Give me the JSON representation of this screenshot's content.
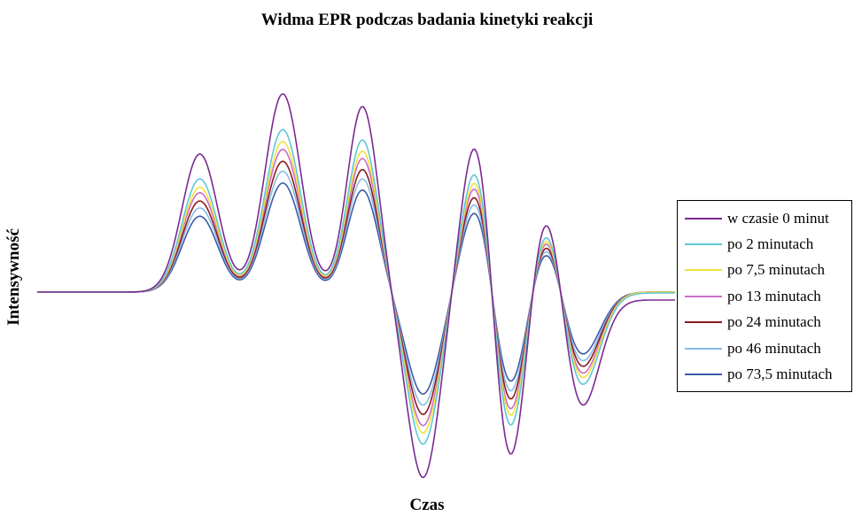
{
  "chart_data": {
    "type": "line",
    "title": "Widma EPR podczas badania kinetyki reakcji",
    "xlabel": "Czas",
    "ylabel": "Intensywność",
    "grid": false,
    "axes_visible": false,
    "legend_position": "right",
    "series": [
      {
        "name": "w czasie 0 minut",
        "color": "#7B2A91",
        "scale": 1.0,
        "tail": 0.045
      },
      {
        "name": "po 2 minutach",
        "color": "#5FC6D8",
        "scale": 0.82,
        "tail": 0.005
      },
      {
        "name": "po 7,5 minutach",
        "color": "#F2E23A",
        "scale": 0.76,
        "tail": 0.0
      },
      {
        "name": "po 13 minutach",
        "color": "#CE6CC8",
        "scale": 0.72,
        "tail": 0.0
      },
      {
        "name": "po 24 minutach",
        "color": "#8B1C1C",
        "scale": 0.66,
        "tail": 0.0
      },
      {
        "name": "po 46 minutach",
        "color": "#86BCEA",
        "scale": 0.61,
        "tail": 0.0
      },
      {
        "name": "po 73,5 minutach",
        "color": "#3B5BA8",
        "scale": 0.55,
        "tail": 0.0
      }
    ],
    "peaks": [
      {
        "x": 0.255,
        "w": 0.028,
        "a": 0.78
      },
      {
        "x": 0.385,
        "w": 0.028,
        "a": 1.12
      },
      {
        "x": 0.51,
        "w": 0.024,
        "a": 1.05
      },
      {
        "x": 0.69,
        "w": 0.024,
        "a": 0.95
      },
      {
        "x": 0.8,
        "w": 0.025,
        "a": 0.62
      }
    ],
    "troughs": [
      {
        "x": 0.605,
        "w": 0.026,
        "a": -1.05
      },
      {
        "x": 0.74,
        "w": 0.026,
        "a": -1.05
      },
      {
        "x": 0.85,
        "w": 0.03,
        "a": -0.7
      }
    ]
  }
}
